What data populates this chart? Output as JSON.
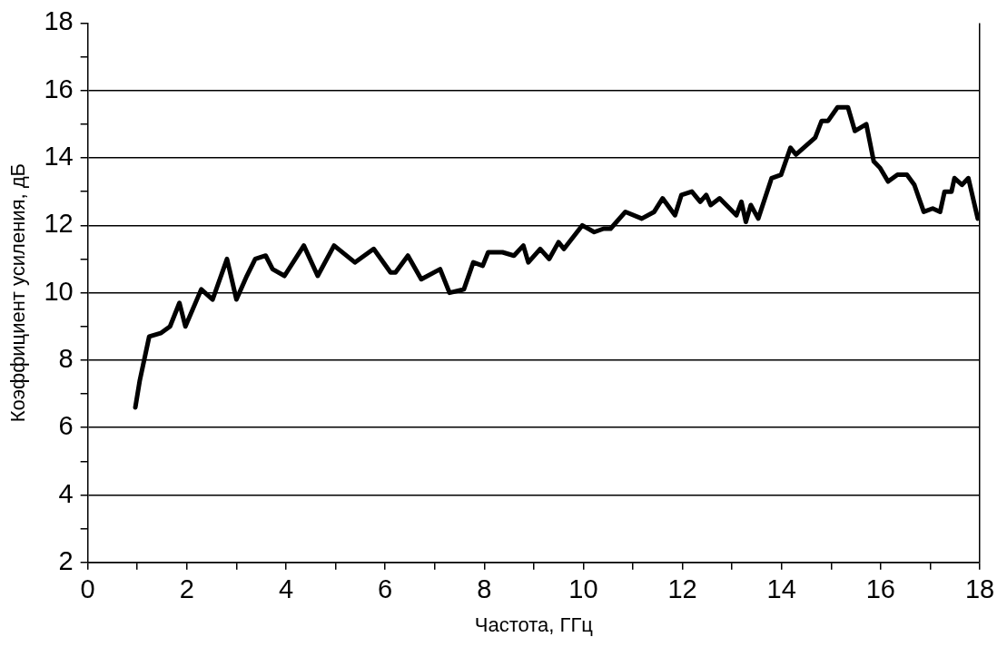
{
  "chart_data": {
    "type": "line",
    "xlabel": "Частота, ГГц",
    "ylabel": "Коэффициент усиления, дБ",
    "series": [
      {
        "color": "#000000",
        "x": [
          0.96,
          1.05,
          1.24,
          1.47,
          1.66,
          1.85,
          1.97,
          2.29,
          2.52,
          2.81,
          3.0,
          3.21,
          3.38,
          3.59,
          3.73,
          3.97,
          4.36,
          4.64,
          4.97,
          5.39,
          5.77,
          6.11,
          6.21,
          6.46,
          6.73,
          7.11,
          7.3,
          7.59,
          7.78,
          7.97,
          8.08,
          8.37,
          8.6,
          8.79,
          8.89,
          9.13,
          9.31,
          9.5,
          9.61,
          9.98,
          10.22,
          10.41,
          10.55,
          10.85,
          11.18,
          11.43,
          11.6,
          11.85,
          11.98,
          12.19,
          12.36,
          12.48,
          12.57,
          12.75,
          13.09,
          13.19,
          13.28,
          13.38,
          13.53,
          13.8,
          13.99,
          14.18,
          14.29,
          14.68,
          14.81,
          14.94,
          15.13,
          15.34,
          15.48,
          15.71,
          15.86,
          15.99,
          16.15,
          16.34,
          16.53,
          16.68,
          16.87,
          17.05,
          17.2,
          17.29,
          17.43,
          17.49,
          17.64,
          17.77,
          17.96
        ],
        "values": [
          6.6,
          7.4,
          8.7,
          8.8,
          9.0,
          9.7,
          9.0,
          10.1,
          9.8,
          11.0,
          9.8,
          10.5,
          11.0,
          11.1,
          10.7,
          10.5,
          11.4,
          10.5,
          11.4,
          10.9,
          11.3,
          10.6,
          10.6,
          11.1,
          10.4,
          10.7,
          10.0,
          10.1,
          10.9,
          10.8,
          11.2,
          11.2,
          11.1,
          11.4,
          10.9,
          11.3,
          11.0,
          11.5,
          11.3,
          12.0,
          11.8,
          11.9,
          11.9,
          12.4,
          12.2,
          12.4,
          12.8,
          12.3,
          12.9,
          13.0,
          12.7,
          12.9,
          12.6,
          12.8,
          12.3,
          12.7,
          12.1,
          12.6,
          12.2,
          13.4,
          13.5,
          14.3,
          14.1,
          14.6,
          15.1,
          15.1,
          15.5,
          15.5,
          14.8,
          15.0,
          13.9,
          13.7,
          13.3,
          13.5,
          13.5,
          13.2,
          12.4,
          12.5,
          12.4,
          13.0,
          13.0,
          13.4,
          13.2,
          13.4,
          12.2
        ]
      }
    ],
    "xlim": [
      0,
      18
    ],
    "xticks": [
      0,
      {
        "value": 1,
        "label": null
      },
      2,
      {
        "value": 3,
        "label": null
      },
      4,
      {
        "value": 5,
        "label": null
      },
      6,
      {
        "value": 7,
        "label": null
      },
      8,
      {
        "value": 9,
        "label": null
      },
      10,
      {
        "value": 11,
        "label": null
      },
      12,
      {
        "value": 13,
        "label": null
      },
      14,
      {
        "value": 15,
        "label": null
      },
      16,
      {
        "value": 17,
        "label": null
      },
      18
    ],
    "ylim": [
      2,
      18
    ],
    "yticks": [
      2,
      {
        "value": 3,
        "label": null
      },
      4,
      {
        "value": 5,
        "label": null
      },
      6,
      {
        "value": 7,
        "label": null
      },
      8,
      {
        "value": 9,
        "label": null
      },
      10,
      {
        "value": 11,
        "label": null
      },
      12,
      {
        "value": 13,
        "label": null
      },
      14,
      {
        "value": 15,
        "label": null
      },
      16,
      {
        "value": 17,
        "label": null
      },
      18
    ],
    "grid": "y",
    "legend": false,
    "marker": "none",
    "line_style": "solid"
  }
}
